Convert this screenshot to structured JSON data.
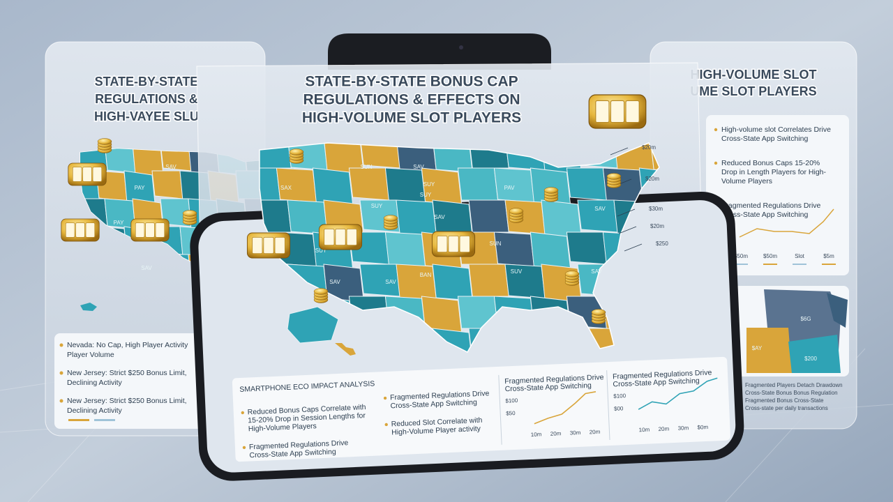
{
  "center_card": {
    "title": [
      "STATE-BY-STATE BONUS CAP",
      "REGULATIONS & EFFECTS ON",
      "HIGH-VOLUME SLOT PLAYERS"
    ],
    "map_labels": [
      "SAX",
      "SUY",
      "SUY",
      "SUN",
      "SAV",
      "SUY",
      "PAV",
      "SUN",
      "SUY",
      "SAV",
      "BAN",
      "SAV",
      "SAV",
      "SUV",
      "SAV",
      "SAV"
    ],
    "callouts": [
      "$20m",
      "$20m",
      "$30m",
      "$20m",
      "$250"
    ]
  },
  "left_card": {
    "title": [
      "STATE-BY-STATE",
      "REGULATIONS &",
      "HIGH-VAYEE SLU"
    ],
    "map_labels": [
      "SAV",
      "PAY",
      "SAV",
      "PAY",
      "SAV"
    ],
    "items": [
      [
        "Nevada: No Cap, High Player Activity",
        "Player Volume"
      ],
      [
        "New Jersey: Strict $250 Bonus Limit,",
        "Declining Activity"
      ],
      [
        "New Jersey: Strict $250 Bonus Limit,",
        "Declining Activity"
      ]
    ]
  },
  "right_card": {
    "title": [
      "HIGH-VOLUME SLOT",
      "UME SLOT PLAYERS"
    ],
    "items": [
      [
        "High-volume slot Correlates Drive",
        "Cross-State App Switching"
      ],
      [
        "Reduced Bonus Caps 15-20%",
        "Drop in Length Players for High-",
        "Volume Players"
      ],
      [
        "Fragmented Regulations Drive",
        "Cross-State App Switching"
      ]
    ],
    "axis": [
      "$50m",
      "$50m",
      "Slot",
      "$5m"
    ],
    "map_labels": [
      "$6G",
      "$AY",
      "$200"
    ],
    "notes": [
      "Fragmented Players Detach Drawdown",
      "Cross-State Bonus Bonus Regulation",
      "Fragmented Bonus Cross-State",
      "Cross-state per daily transactions"
    ]
  },
  "phone": {
    "section_title": "SMARTPHONE ECO IMPACT ANALYSIS",
    "col1": [
      [
        "Reduced Bonus Caps Correlate with",
        "15-20% Drop in Session Lengths for",
        "High-Volume Players"
      ],
      [
        "Fragmented Regulations Drive",
        "Cross-State App Switching"
      ]
    ],
    "col2": [
      [
        "Fragmented Regulations Drive",
        "Cross-State App Switching"
      ],
      [
        "Reduced Slot Correlate with",
        "High-Volume Player activity"
      ]
    ],
    "chart1": {
      "title": [
        "Fragmented Regulations Drive",
        "Cross-State App Switching"
      ],
      "y": [
        "$100",
        "$50"
      ],
      "x": [
        "10m",
        "20m",
        "30m",
        "20m"
      ]
    },
    "chart2": {
      "title": [
        "Fragmented Regulations Drive",
        "Cross-State App Switching"
      ],
      "y": [
        "$100",
        "$00"
      ],
      "x": [
        "10m",
        "20m",
        "30m",
        "$0m"
      ]
    }
  }
}
